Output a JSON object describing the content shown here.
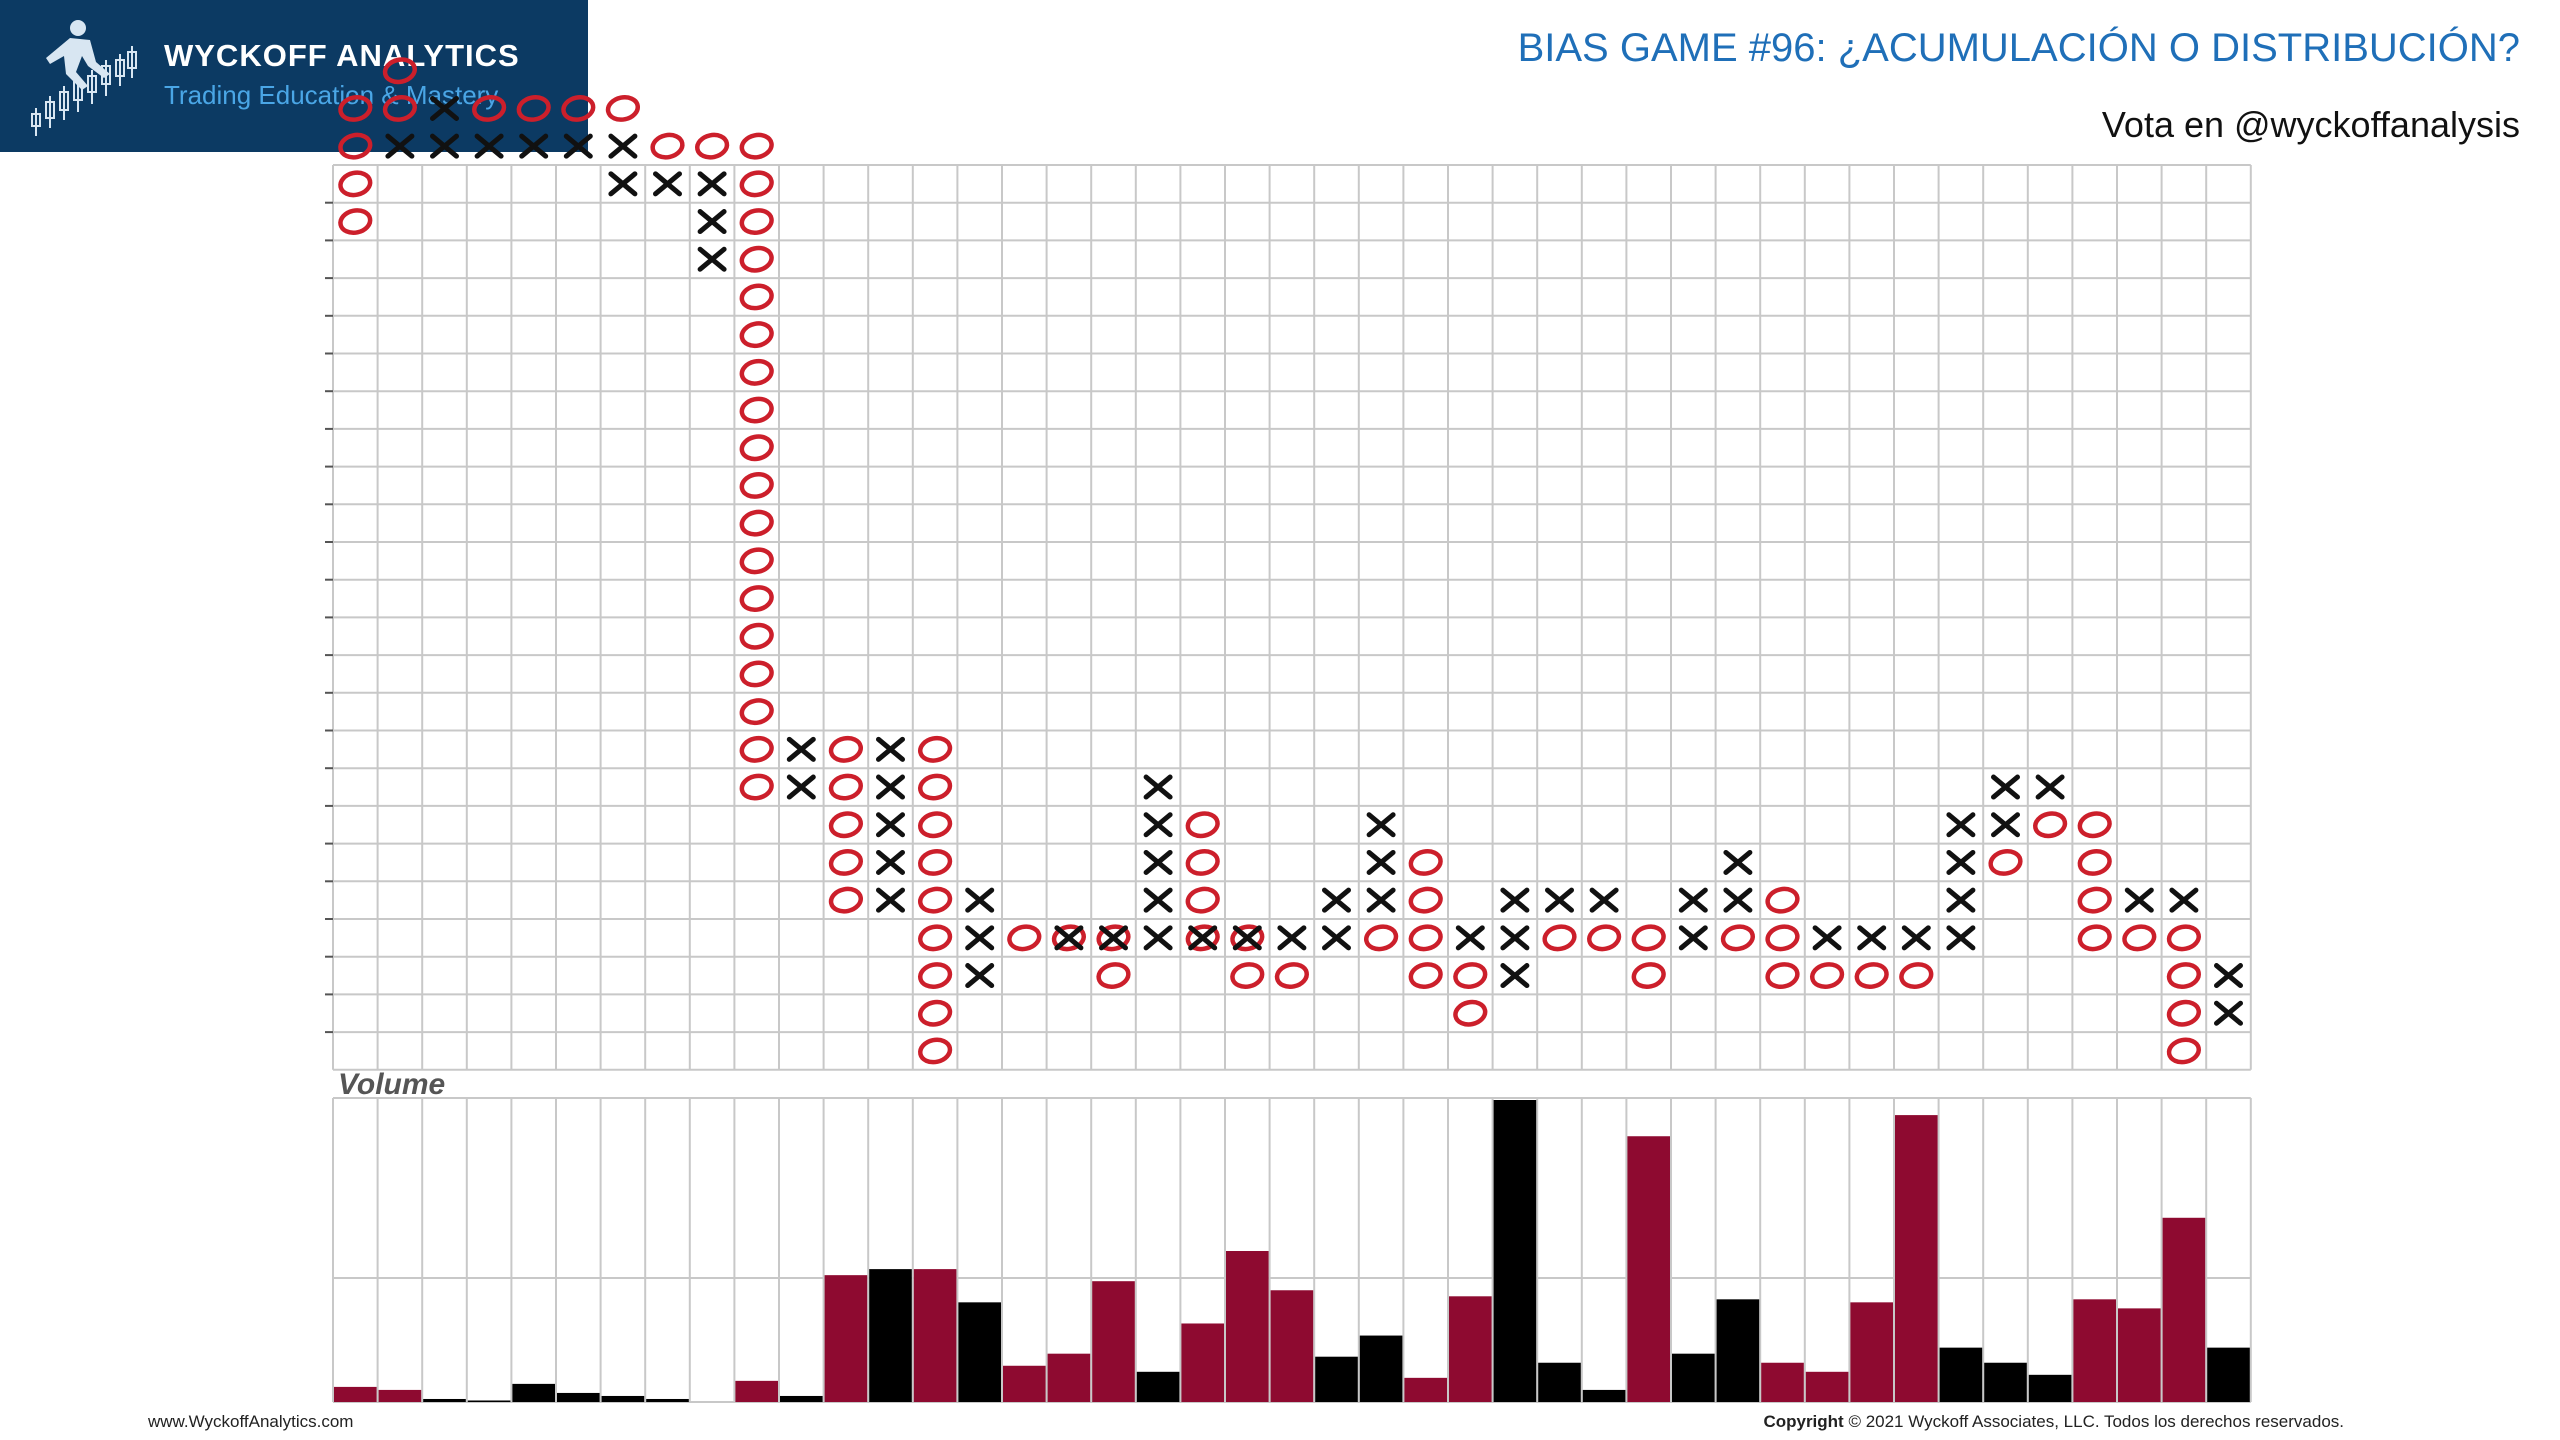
{
  "brand": {
    "title": "WYCKOFF ANALYTICS",
    "subtitle": "Trading Education & Mastery",
    "logo_icon": "runner-on-candlesticks-icon"
  },
  "header": {
    "title": "BIAS GAME #96: ¿ACUMULACIÓN O DISTRIBUCIÓN?",
    "subtitle": "Vota en @wyckoffanalysis"
  },
  "footer": {
    "url": "www.WyckoffAnalytics.com",
    "copyright_label": "Copyright",
    "copyright_text": " © 2021 Wyckoff Associates, LLC. Todos los derechos reservados."
  },
  "colors": {
    "x_mark": "#111111",
    "o_mark": "#cc1f2b",
    "vol_up": "#000000",
    "vol_down": "#8e0a30",
    "grid": "#c8c8c8",
    "title_blue": "#1f6fb8",
    "logo_bg": "#0c3a63"
  },
  "chart_data": {
    "type": "point-and-figure",
    "columns": 43,
    "row_range": [
      0,
      23
    ],
    "grid": true,
    "marks": [
      {
        "col": 0,
        "type": "O",
        "rows": [
          18,
          19,
          20,
          21
        ]
      },
      {
        "col": 1,
        "type": "O",
        "rows": [
          21,
          22
        ]
      },
      {
        "col": 1,
        "type": "X",
        "rows": [
          20
        ]
      },
      {
        "col": 2,
        "type": "X",
        "rows": [
          20,
          21
        ]
      },
      {
        "col": 3,
        "type": "O",
        "rows": [
          21
        ]
      },
      {
        "col": 3,
        "type": "X",
        "rows": [
          20
        ]
      },
      {
        "col": 4,
        "type": "O",
        "rows": [
          21
        ]
      },
      {
        "col": 4,
        "type": "X",
        "rows": [
          20
        ]
      },
      {
        "col": 5,
        "type": "O",
        "rows": [
          21
        ]
      },
      {
        "col": 5,
        "type": "X",
        "rows": [
          20
        ]
      },
      {
        "col": 6,
        "type": "O",
        "rows": [
          21
        ]
      },
      {
        "col": 6,
        "type": "X",
        "rows": [
          19,
          20
        ]
      },
      {
        "col": 7,
        "type": "O",
        "rows": [
          20
        ]
      },
      {
        "col": 7,
        "type": "X",
        "rows": [
          19
        ]
      },
      {
        "col": 8,
        "type": "O",
        "rows": [
          20
        ]
      },
      {
        "col": 8,
        "type": "X",
        "rows": [
          17,
          18,
          19
        ]
      },
      {
        "col": 9,
        "type": "O",
        "rows": [
          3,
          4,
          5,
          6,
          7,
          8,
          9,
          10,
          11,
          12,
          13,
          14,
          15,
          16,
          17,
          18,
          19,
          20
        ]
      },
      {
        "col": 10,
        "type": "X",
        "rows": [
          3,
          4
        ]
      },
      {
        "col": 11,
        "type": "O",
        "rows": [
          0,
          1,
          2,
          3,
          4
        ]
      },
      {
        "col": 12,
        "type": "X",
        "rows": [
          0,
          1,
          2,
          3,
          4
        ]
      },
      {
        "col": 13,
        "type": "O",
        "rows": [
          -4,
          -3,
          -2,
          -1,
          0,
          1,
          2,
          3,
          4
        ]
      },
      {
        "col": 14,
        "type": "X",
        "rows": [
          -2,
          -1,
          0
        ]
      },
      {
        "col": 15,
        "type": "O",
        "rows": [
          -1
        ]
      },
      {
        "col": 16,
        "type": "O",
        "rows": [
          -1
        ]
      },
      {
        "col": 16,
        "type": "X",
        "rows": [
          -1
        ]
      },
      {
        "col": 17,
        "type": "O",
        "rows": [
          -2,
          -1
        ]
      },
      {
        "col": 17,
        "type": "X",
        "rows": [
          -1
        ]
      },
      {
        "col": 18,
        "type": "X",
        "rows": [
          -1,
          0,
          1,
          2,
          3
        ]
      },
      {
        "col": 19,
        "type": "O",
        "rows": [
          -1,
          0,
          1,
          2
        ]
      },
      {
        "col": 19,
        "type": "X",
        "rows": [
          -1
        ]
      },
      {
        "col": 20,
        "type": "O",
        "rows": [
          -2,
          -1
        ]
      },
      {
        "col": 20,
        "type": "X",
        "rows": [
          -1
        ]
      },
      {
        "col": 21,
        "type": "O",
        "rows": [
          -2
        ]
      },
      {
        "col": 21,
        "type": "X",
        "rows": [
          -1
        ]
      },
      {
        "col": 22,
        "type": "X",
        "rows": [
          -1,
          0
        ]
      },
      {
        "col": 23,
        "type": "O",
        "rows": [
          -1
        ]
      },
      {
        "col": 23,
        "type": "X",
        "rows": [
          0,
          1,
          2
        ]
      },
      {
        "col": 24,
        "type": "O",
        "rows": [
          -2,
          -1,
          0,
          1
        ]
      },
      {
        "col": 25,
        "type": "O",
        "rows": [
          -3,
          -2
        ]
      },
      {
        "col": 25,
        "type": "X",
        "rows": [
          -1
        ]
      },
      {
        "col": 26,
        "type": "X",
        "rows": [
          -2,
          -1,
          0
        ]
      },
      {
        "col": 27,
        "type": "O",
        "rows": [
          -1
        ]
      },
      {
        "col": 27,
        "type": "X",
        "rows": [
          0
        ]
      },
      {
        "col": 28,
        "type": "O",
        "rows": [
          -1
        ]
      },
      {
        "col": 28,
        "type": "X",
        "rows": [
          0
        ]
      },
      {
        "col": 29,
        "type": "O",
        "rows": [
          -2,
          -1
        ]
      },
      {
        "col": 30,
        "type": "X",
        "rows": [
          -1,
          0
        ]
      },
      {
        "col": 31,
        "type": "O",
        "rows": [
          -1
        ]
      },
      {
        "col": 31,
        "type": "X",
        "rows": [
          0,
          1
        ]
      },
      {
        "col": 32,
        "type": "O",
        "rows": [
          -2,
          -1,
          0
        ]
      },
      {
        "col": 33,
        "type": "O",
        "rows": [
          -2
        ]
      },
      {
        "col": 33,
        "type": "X",
        "rows": [
          -1
        ]
      },
      {
        "col": 34,
        "type": "O",
        "rows": [
          -2
        ]
      },
      {
        "col": 34,
        "type": "X",
        "rows": [
          -1
        ]
      },
      {
        "col": 35,
        "type": "O",
        "rows": [
          -2
        ]
      },
      {
        "col": 35,
        "type": "X",
        "rows": [
          -1
        ]
      },
      {
        "col": 36,
        "type": "X",
        "rows": [
          -1,
          0,
          1,
          2
        ]
      },
      {
        "col": 37,
        "type": "O",
        "rows": [
          1
        ]
      },
      {
        "col": 37,
        "type": "X",
        "rows": [
          2,
          3
        ]
      },
      {
        "col": 38,
        "type": "O",
        "rows": [
          2
        ]
      },
      {
        "col": 38,
        "type": "X",
        "rows": [
          3
        ]
      },
      {
        "col": 39,
        "type": "O",
        "rows": [
          -1,
          0,
          1,
          2
        ]
      },
      {
        "col": 40,
        "type": "O",
        "rows": [
          -1
        ]
      },
      {
        "col": 40,
        "type": "X",
        "rows": [
          0
        ]
      },
      {
        "col": 41,
        "type": "O",
        "rows": [
          -4,
          -3,
          -2,
          -1
        ]
      },
      {
        "col": 41,
        "type": "X",
        "rows": [
          0
        ]
      },
      {
        "col": 42,
        "type": "X",
        "rows": [
          -3,
          -2
        ]
      }
    ],
    "volume": {
      "label": "Volume",
      "ylim": [
        0,
        100
      ],
      "bars": [
        {
          "col": 0,
          "value": 5,
          "dir": "down"
        },
        {
          "col": 1,
          "value": 4,
          "dir": "down"
        },
        {
          "col": 2,
          "value": 1,
          "dir": "up"
        },
        {
          "col": 3,
          "value": 0.5,
          "dir": "up"
        },
        {
          "col": 4,
          "value": 6,
          "dir": "up"
        },
        {
          "col": 5,
          "value": 3,
          "dir": "up"
        },
        {
          "col": 6,
          "value": 2,
          "dir": "up"
        },
        {
          "col": 7,
          "value": 1,
          "dir": "up"
        },
        {
          "col": 8,
          "value": 0,
          "dir": "up"
        },
        {
          "col": 9,
          "value": 7,
          "dir": "down"
        },
        {
          "col": 10,
          "value": 2,
          "dir": "up"
        },
        {
          "col": 11,
          "value": 42,
          "dir": "down"
        },
        {
          "col": 12,
          "value": 44,
          "dir": "up"
        },
        {
          "col": 13,
          "value": 44,
          "dir": "down"
        },
        {
          "col": 14,
          "value": 33,
          "dir": "up"
        },
        {
          "col": 15,
          "value": 12,
          "dir": "down"
        },
        {
          "col": 16,
          "value": 16,
          "dir": "down"
        },
        {
          "col": 17,
          "value": 40,
          "dir": "down"
        },
        {
          "col": 18,
          "value": 10,
          "dir": "up"
        },
        {
          "col": 19,
          "value": 26,
          "dir": "down"
        },
        {
          "col": 20,
          "value": 50,
          "dir": "down"
        },
        {
          "col": 21,
          "value": 37,
          "dir": "down"
        },
        {
          "col": 22,
          "value": 15,
          "dir": "up"
        },
        {
          "col": 23,
          "value": 22,
          "dir": "up"
        },
        {
          "col": 24,
          "value": 8,
          "dir": "down"
        },
        {
          "col": 25,
          "value": 35,
          "dir": "down"
        },
        {
          "col": 26,
          "value": 100,
          "dir": "up"
        },
        {
          "col": 27,
          "value": 13,
          "dir": "up"
        },
        {
          "col": 28,
          "value": 4,
          "dir": "up"
        },
        {
          "col": 29,
          "value": 88,
          "dir": "down"
        },
        {
          "col": 30,
          "value": 16,
          "dir": "up"
        },
        {
          "col": 31,
          "value": 34,
          "dir": "up"
        },
        {
          "col": 32,
          "value": 13,
          "dir": "down"
        },
        {
          "col": 33,
          "value": 10,
          "dir": "down"
        },
        {
          "col": 34,
          "value": 33,
          "dir": "down"
        },
        {
          "col": 35,
          "value": 95,
          "dir": "down"
        },
        {
          "col": 36,
          "value": 18,
          "dir": "up"
        },
        {
          "col": 37,
          "value": 13,
          "dir": "up"
        },
        {
          "col": 38,
          "value": 9,
          "dir": "up"
        },
        {
          "col": 39,
          "value": 34,
          "dir": "down"
        },
        {
          "col": 40,
          "value": 31,
          "dir": "down"
        },
        {
          "col": 41,
          "value": 61,
          "dir": "down"
        },
        {
          "col": 42,
          "value": 18,
          "dir": "up"
        }
      ]
    }
  }
}
